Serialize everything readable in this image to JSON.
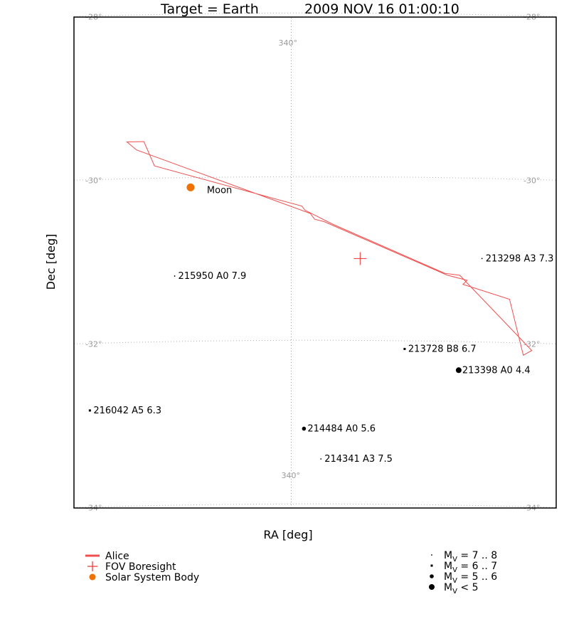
{
  "title": {
    "target": "Target = Earth",
    "datetime": "2009 NOV 16 01:00:10"
  },
  "colors": {
    "alice": "#f05050",
    "boresight": "#f03030",
    "solar_body": "#f07000",
    "grid": "#b0b0b0",
    "grid_label": "#9a9a9a"
  },
  "chart_data": {
    "type": "scatter",
    "xlabel": "RA [deg]",
    "ylabel": "Dec [deg]",
    "xlim": [
      342.05,
      337.5
    ],
    "ylim": [
      -34.05,
      -28.05
    ],
    "grid": {
      "ra_lines": [
        340
      ],
      "ra_label": "340°",
      "dec_lines": [
        -28,
        -30,
        -32,
        -34
      ],
      "dec_labels": [
        "-28°",
        "-30°",
        "-32°",
        "-34°"
      ]
    },
    "alice_fov": {
      "name": "Alice",
      "polygon": [
        [
          341.55,
          -29.55
        ],
        [
          341.46,
          -29.65
        ],
        [
          339.82,
          -30.45
        ],
        [
          339.78,
          -30.52
        ],
        [
          339.69,
          -30.55
        ],
        [
          338.53,
          -31.19
        ],
        [
          338.34,
          -31.25
        ],
        [
          338.38,
          -31.3
        ],
        [
          337.94,
          -31.47
        ],
        [
          337.82,
          -32.1
        ],
        [
          337.81,
          -32.15
        ],
        [
          337.81,
          -32.15
        ],
        [
          337.73,
          -32.09
        ],
        [
          338.41,
          -31.19
        ],
        [
          338.55,
          -31.17
        ],
        [
          339.61,
          -30.58
        ],
        [
          339.87,
          -30.41
        ],
        [
          339.9,
          -30.36
        ],
        [
          341.29,
          -29.85
        ],
        [
          341.39,
          -29.55
        ]
      ]
    },
    "boresight": {
      "name": "FOV Boresight",
      "ra": 339.35,
      "dec": -31.0
    },
    "solar_system_bodies": [
      {
        "name": "Moon",
        "ra": 340.95,
        "dec": -30.12
      }
    ],
    "stars": [
      {
        "id": "213298",
        "type": "A3",
        "mag": 7.3,
        "label": "213298 A3 7.3",
        "ra": 338.2,
        "dec": -30.98
      },
      {
        "id": "215950",
        "type": "A0",
        "mag": 7.9,
        "label": "215950 A0 7.9",
        "ra": 341.1,
        "dec": -31.2
      },
      {
        "id": "213728",
        "type": "B8",
        "mag": 6.7,
        "label": "213728 B8 6.7",
        "ra": 338.93,
        "dec": -32.1
      },
      {
        "id": "213398",
        "type": "A0",
        "mag": 4.4,
        "label": "213398 A0 4.4",
        "ra": 338.42,
        "dec": -32.35
      },
      {
        "id": "216042",
        "type": "A5",
        "mag": 6.3,
        "label": "216042 A5 6.3",
        "ra": 341.9,
        "dec": -32.82
      },
      {
        "id": "214484",
        "type": "A0",
        "mag": 5.6,
        "label": "214484 A0 5.6",
        "ra": 339.88,
        "dec": -33.08
      },
      {
        "id": "214341",
        "type": "A3",
        "mag": 7.5,
        "label": "214341 A3 7.5",
        "ra": 339.72,
        "dec": -33.45
      }
    ]
  },
  "legend": {
    "left": [
      {
        "label": "Alice",
        "symbol": "line"
      },
      {
        "label": "FOV Boresight",
        "symbol": "cross"
      },
      {
        "label": "Solar System Body",
        "symbol": "dot"
      }
    ],
    "right": [
      {
        "prefix": "M",
        "sub": "V",
        "text": " = 7 .. 8"
      },
      {
        "prefix": "M",
        "sub": "V",
        "text": " = 6 .. 7"
      },
      {
        "prefix": "M",
        "sub": "V",
        "text": " = 5 .. 6"
      },
      {
        "prefix": "M",
        "sub": "V",
        "text": " < 5"
      }
    ]
  }
}
